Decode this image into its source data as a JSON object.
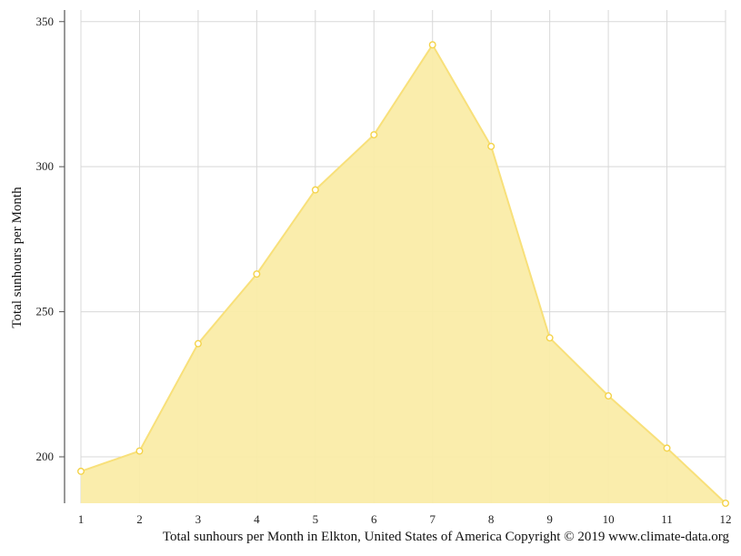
{
  "chart_data": {
    "type": "area",
    "x": [
      1,
      2,
      3,
      4,
      5,
      6,
      7,
      8,
      9,
      10,
      11,
      12
    ],
    "values": [
      195,
      202,
      239,
      263,
      292,
      311,
      342,
      307,
      241,
      221,
      203,
      184
    ],
    "xlabel": "",
    "ylabel": "Total sunhours per Month",
    "y_ticks": [
      200,
      250,
      300,
      350
    ],
    "x_ticks": [
      1,
      2,
      3,
      4,
      5,
      6,
      7,
      8,
      9,
      10,
      11,
      12
    ],
    "ylim": [
      184,
      354
    ],
    "xlim": [
      1,
      12
    ],
    "grid": true,
    "colors": {
      "fill": "#faeca8",
      "line": "#f8e07a",
      "marker_stroke": "#f4d34a",
      "grid": "#d8d8d8",
      "axis": "#555555"
    }
  },
  "footer": "Total sunhours per Month in Elkton, United States of America Copyright © 2019 www.climate-data.org"
}
